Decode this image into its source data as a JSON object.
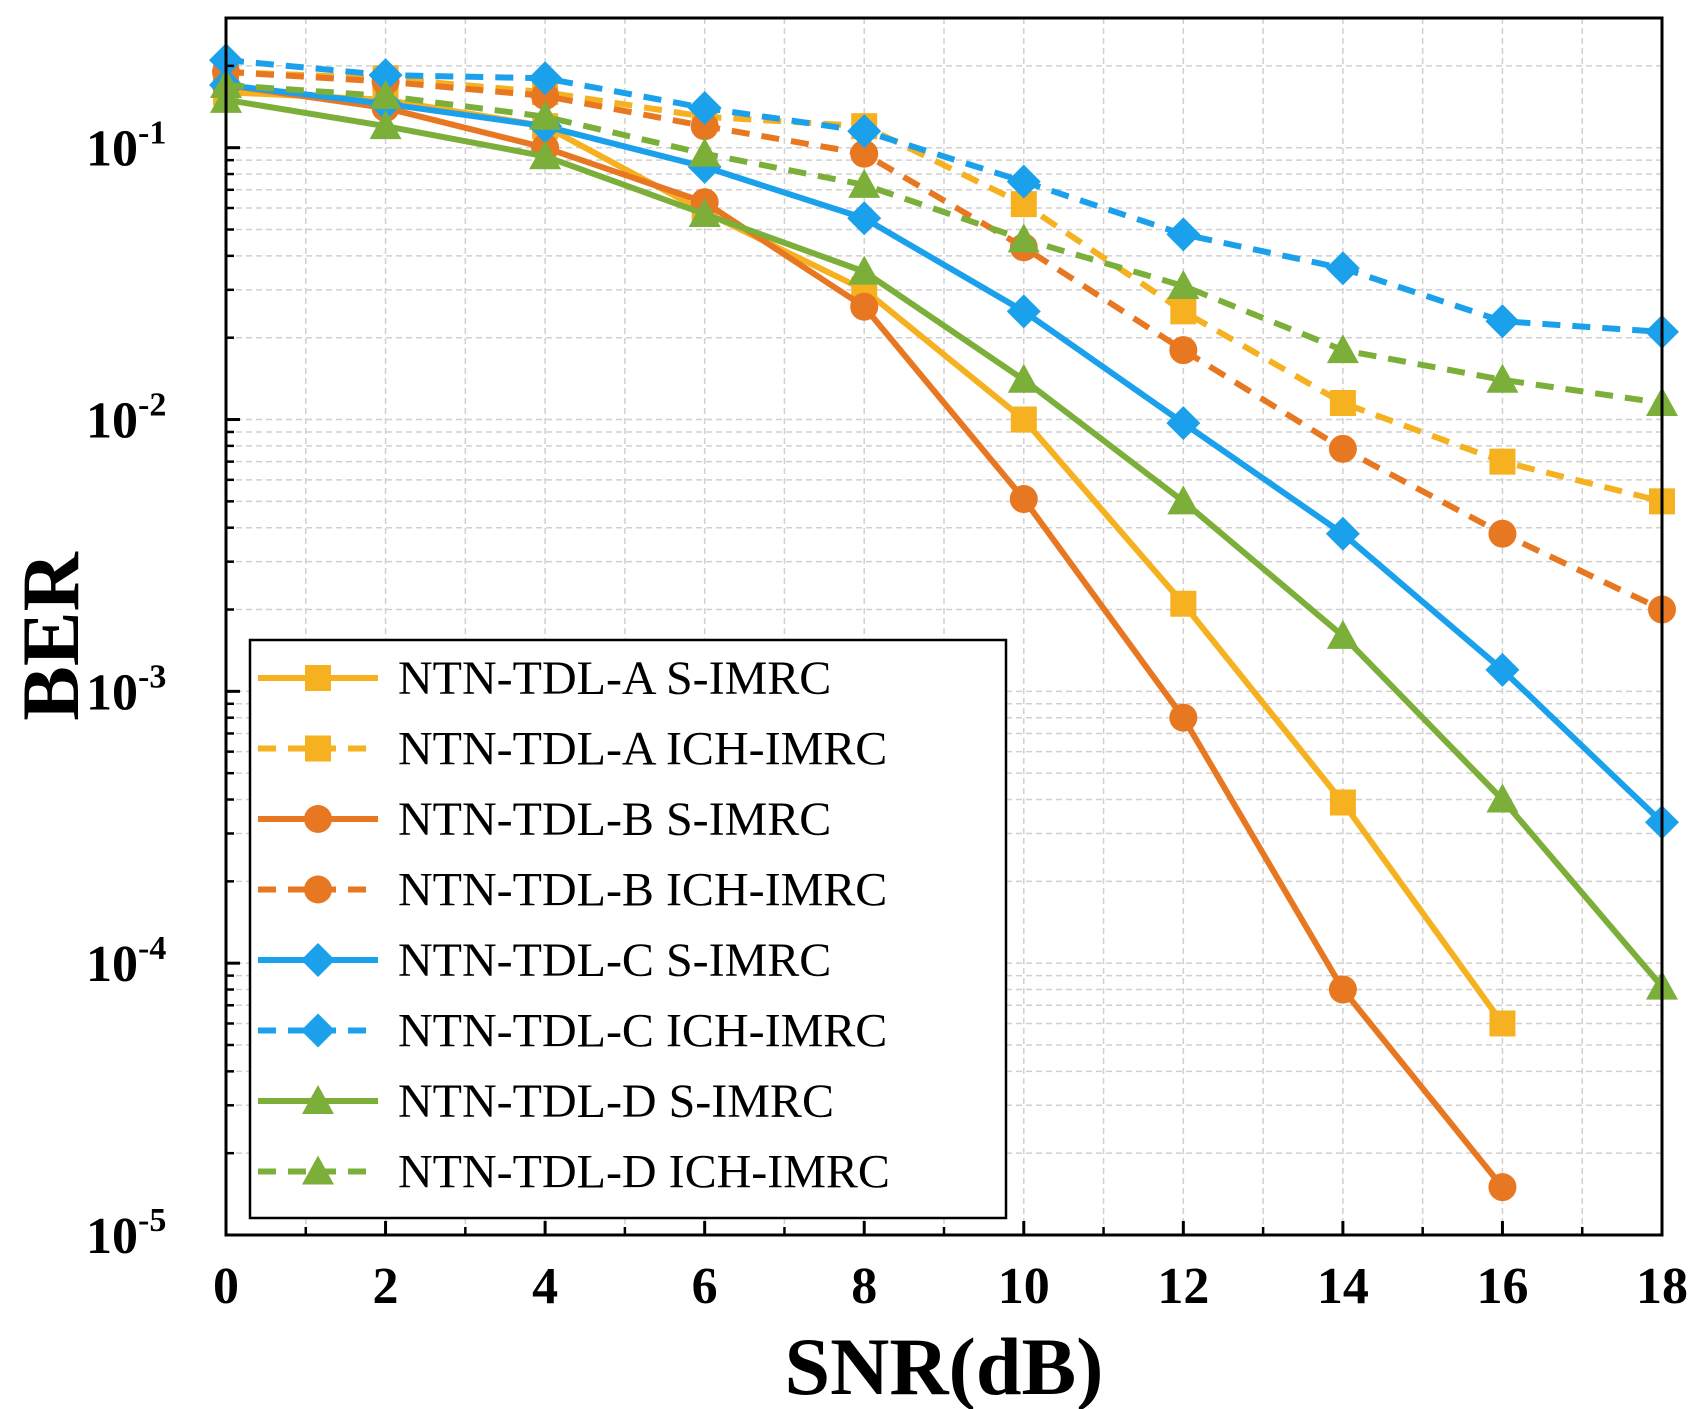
{
  "chart_data": {
    "type": "line",
    "title": "",
    "xlabel": "SNR(dB)",
    "ylabel": "BER",
    "x_ticks": [
      0,
      2,
      4,
      6,
      8,
      10,
      12,
      14,
      16,
      18
    ],
    "x_tick_labels": [
      "0",
      "2",
      "4",
      "6",
      "8",
      "10",
      "12",
      "14",
      "16",
      "18"
    ],
    "xlim": [
      0,
      18
    ],
    "ylim": [
      1e-05,
      0.3
    ],
    "yscale": "log",
    "y_ticks": [
      {
        "value": 0.1,
        "base": "10",
        "exp": "-1"
      },
      {
        "value": 0.01,
        "base": "10",
        "exp": "-2"
      },
      {
        "value": 0.001,
        "base": "10",
        "exp": "-3"
      },
      {
        "value": 0.0001,
        "base": "10",
        "exp": "-4"
      },
      {
        "value": 1e-05,
        "base": "10",
        "exp": "-5"
      }
    ],
    "grid": true,
    "legend_position": "bottom-left",
    "series": [
      {
        "name": "NTN-TDL-A S-IMRC",
        "color": "#F5B120",
        "marker": "square",
        "dash": "solid",
        "x": [
          0,
          2,
          4,
          6,
          8,
          10,
          12,
          14,
          16
        ],
        "y": [
          0.16,
          0.15,
          0.12,
          0.058,
          0.03,
          0.01,
          0.0021,
          0.00039,
          6e-05
        ]
      },
      {
        "name": "NTN-TDL-A ICH-IMRC",
        "color": "#F5B120",
        "marker": "square",
        "dash": "dashed",
        "x": [
          0,
          2,
          4,
          6,
          8,
          10,
          12,
          14,
          16,
          18
        ],
        "y": [
          0.19,
          0.18,
          0.16,
          0.13,
          0.12,
          0.062,
          0.025,
          0.0115,
          0.007,
          0.005
        ]
      },
      {
        "name": "NTN-TDL-B S-IMRC",
        "color": "#E87722",
        "marker": "circle",
        "dash": "solid",
        "x": [
          0,
          2,
          4,
          6,
          8,
          10,
          12,
          14,
          16
        ],
        "y": [
          0.17,
          0.14,
          0.1,
          0.063,
          0.026,
          0.0051,
          0.0008,
          8e-05,
          1.5e-05
        ]
      },
      {
        "name": "NTN-TDL-B ICH-IMRC",
        "color": "#E87722",
        "marker": "circle",
        "dash": "dashed",
        "x": [
          0,
          2,
          4,
          6,
          8,
          10,
          12,
          14,
          16,
          18
        ],
        "y": [
          0.19,
          0.175,
          0.155,
          0.12,
          0.095,
          0.043,
          0.018,
          0.0078,
          0.0038,
          0.002
        ]
      },
      {
        "name": "NTN-TDL-C S-IMRC",
        "color": "#1BA1EC",
        "marker": "diamond",
        "dash": "solid",
        "x": [
          0,
          2,
          4,
          6,
          8,
          10,
          12,
          14,
          16,
          18
        ],
        "y": [
          0.17,
          0.145,
          0.12,
          0.085,
          0.055,
          0.025,
          0.0097,
          0.0038,
          0.0012,
          0.00033
        ]
      },
      {
        "name": "NTN-TDL-C ICH-IMRC",
        "color": "#1BA1EC",
        "marker": "diamond",
        "dash": "dashed",
        "x": [
          0,
          2,
          4,
          6,
          8,
          10,
          12,
          14,
          16,
          18
        ],
        "y": [
          0.21,
          0.185,
          0.18,
          0.14,
          0.115,
          0.075,
          0.048,
          0.036,
          0.023,
          0.021
        ]
      },
      {
        "name": "NTN-TDL-D S-IMRC",
        "color": "#7CAF3A",
        "marker": "triangle",
        "dash": "solid",
        "x": [
          0,
          2,
          4,
          6,
          8,
          10,
          12,
          14,
          16,
          18
        ],
        "y": [
          0.15,
          0.12,
          0.093,
          0.057,
          0.035,
          0.014,
          0.005,
          0.0016,
          0.0004,
          8.2e-05
        ]
      },
      {
        "name": "NTN-TDL-D ICH-IMRC",
        "color": "#7CAF3A",
        "marker": "triangle",
        "dash": "dashed",
        "x": [
          0,
          2,
          4,
          6,
          8,
          10,
          12,
          14,
          16,
          18
        ],
        "y": [
          0.17,
          0.155,
          0.13,
          0.095,
          0.073,
          0.046,
          0.031,
          0.018,
          0.014,
          0.0115
        ]
      }
    ]
  }
}
